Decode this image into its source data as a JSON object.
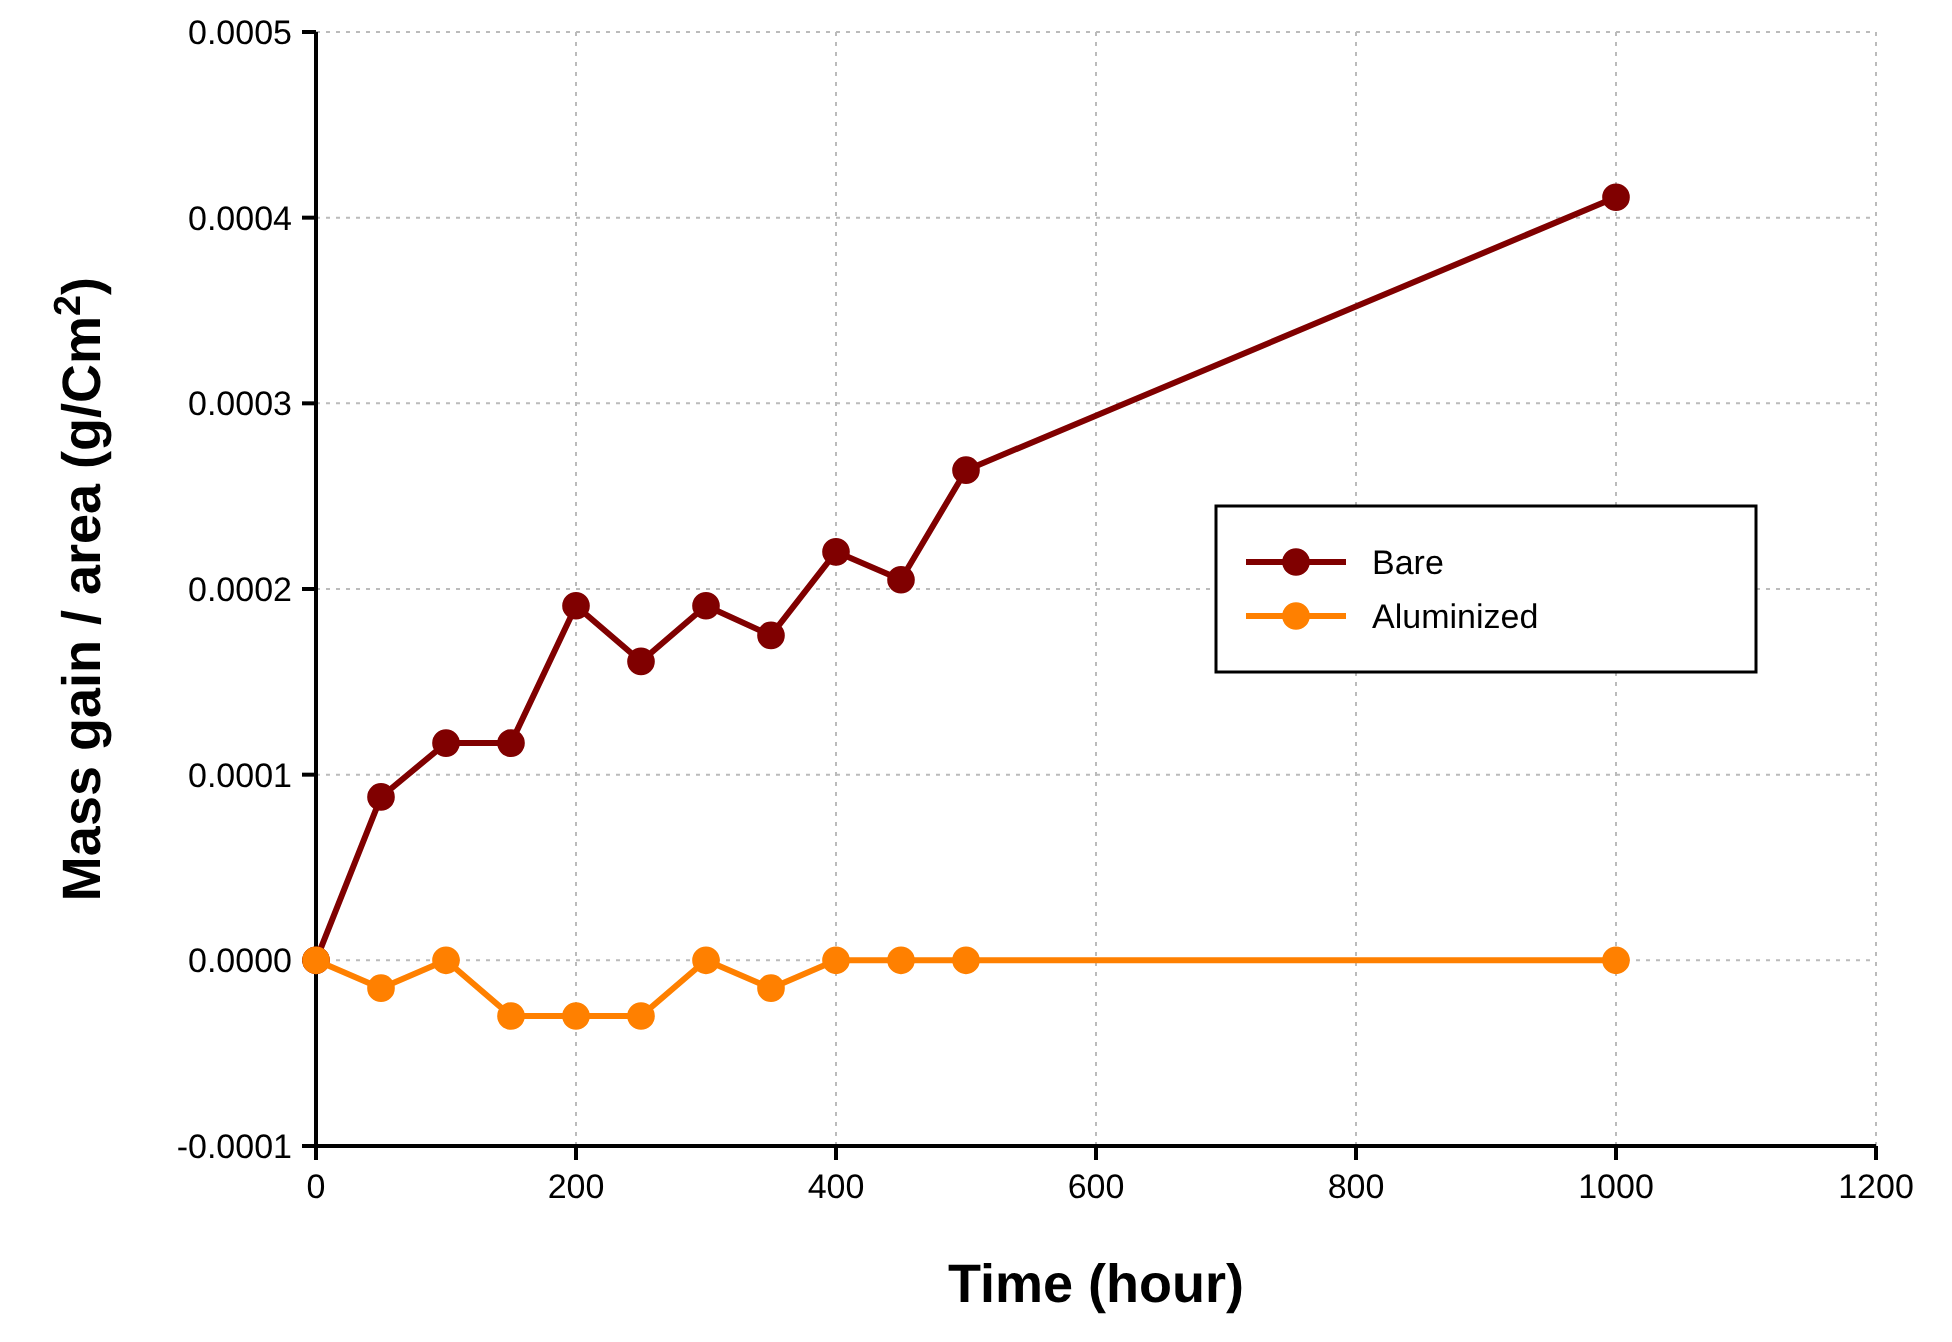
{
  "chart_data": {
    "type": "line",
    "xlabel": "Time (hour)",
    "ylabel": "Mass gain / area (g/Cm$^{2}$)",
    "xlim": [
      0,
      1200
    ],
    "xticks": [
      0,
      200,
      400,
      600,
      800,
      1000,
      1200
    ],
    "ylim": [
      -0.0001,
      0.0005
    ],
    "yticks": [
      {
        "value": -0.0001,
        "label": "-0.0001"
      },
      {
        "value": 0,
        "label": "0.0000"
      },
      {
        "value": 0.0001,
        "label": "0.0001"
      },
      {
        "value": 0.0002,
        "label": "0.0002"
      },
      {
        "value": 0.0003,
        "label": "0.0003"
      },
      {
        "value": 0.0004,
        "label": "0.0004"
      },
      {
        "value": 0.0005,
        "label": "0.0005"
      }
    ],
    "grid": true,
    "legend": "right",
    "marker": "circle",
    "line_style": "solid",
    "series": [
      {
        "name": "Bare",
        "color": "#800000",
        "x": [
          0,
          50,
          100,
          150,
          200,
          250,
          300,
          350,
          400,
          450,
          500,
          1000
        ],
        "values": [
          0,
          8.8e-05,
          0.000117,
          0.000117,
          0.000191,
          0.000161,
          0.000191,
          0.000175,
          0.00022,
          0.000205,
          0.000264,
          0.000411
        ]
      },
      {
        "name": "Aluminized",
        "color": "#ff8000",
        "x": [
          0,
          50,
          100,
          150,
          200,
          250,
          300,
          350,
          400,
          450,
          500,
          1000
        ],
        "values": [
          0,
          -1.5e-05,
          0,
          -3e-05,
          -3e-05,
          -3e-05,
          0,
          -1.5e-05,
          0,
          0,
          0,
          0
        ]
      }
    ]
  }
}
